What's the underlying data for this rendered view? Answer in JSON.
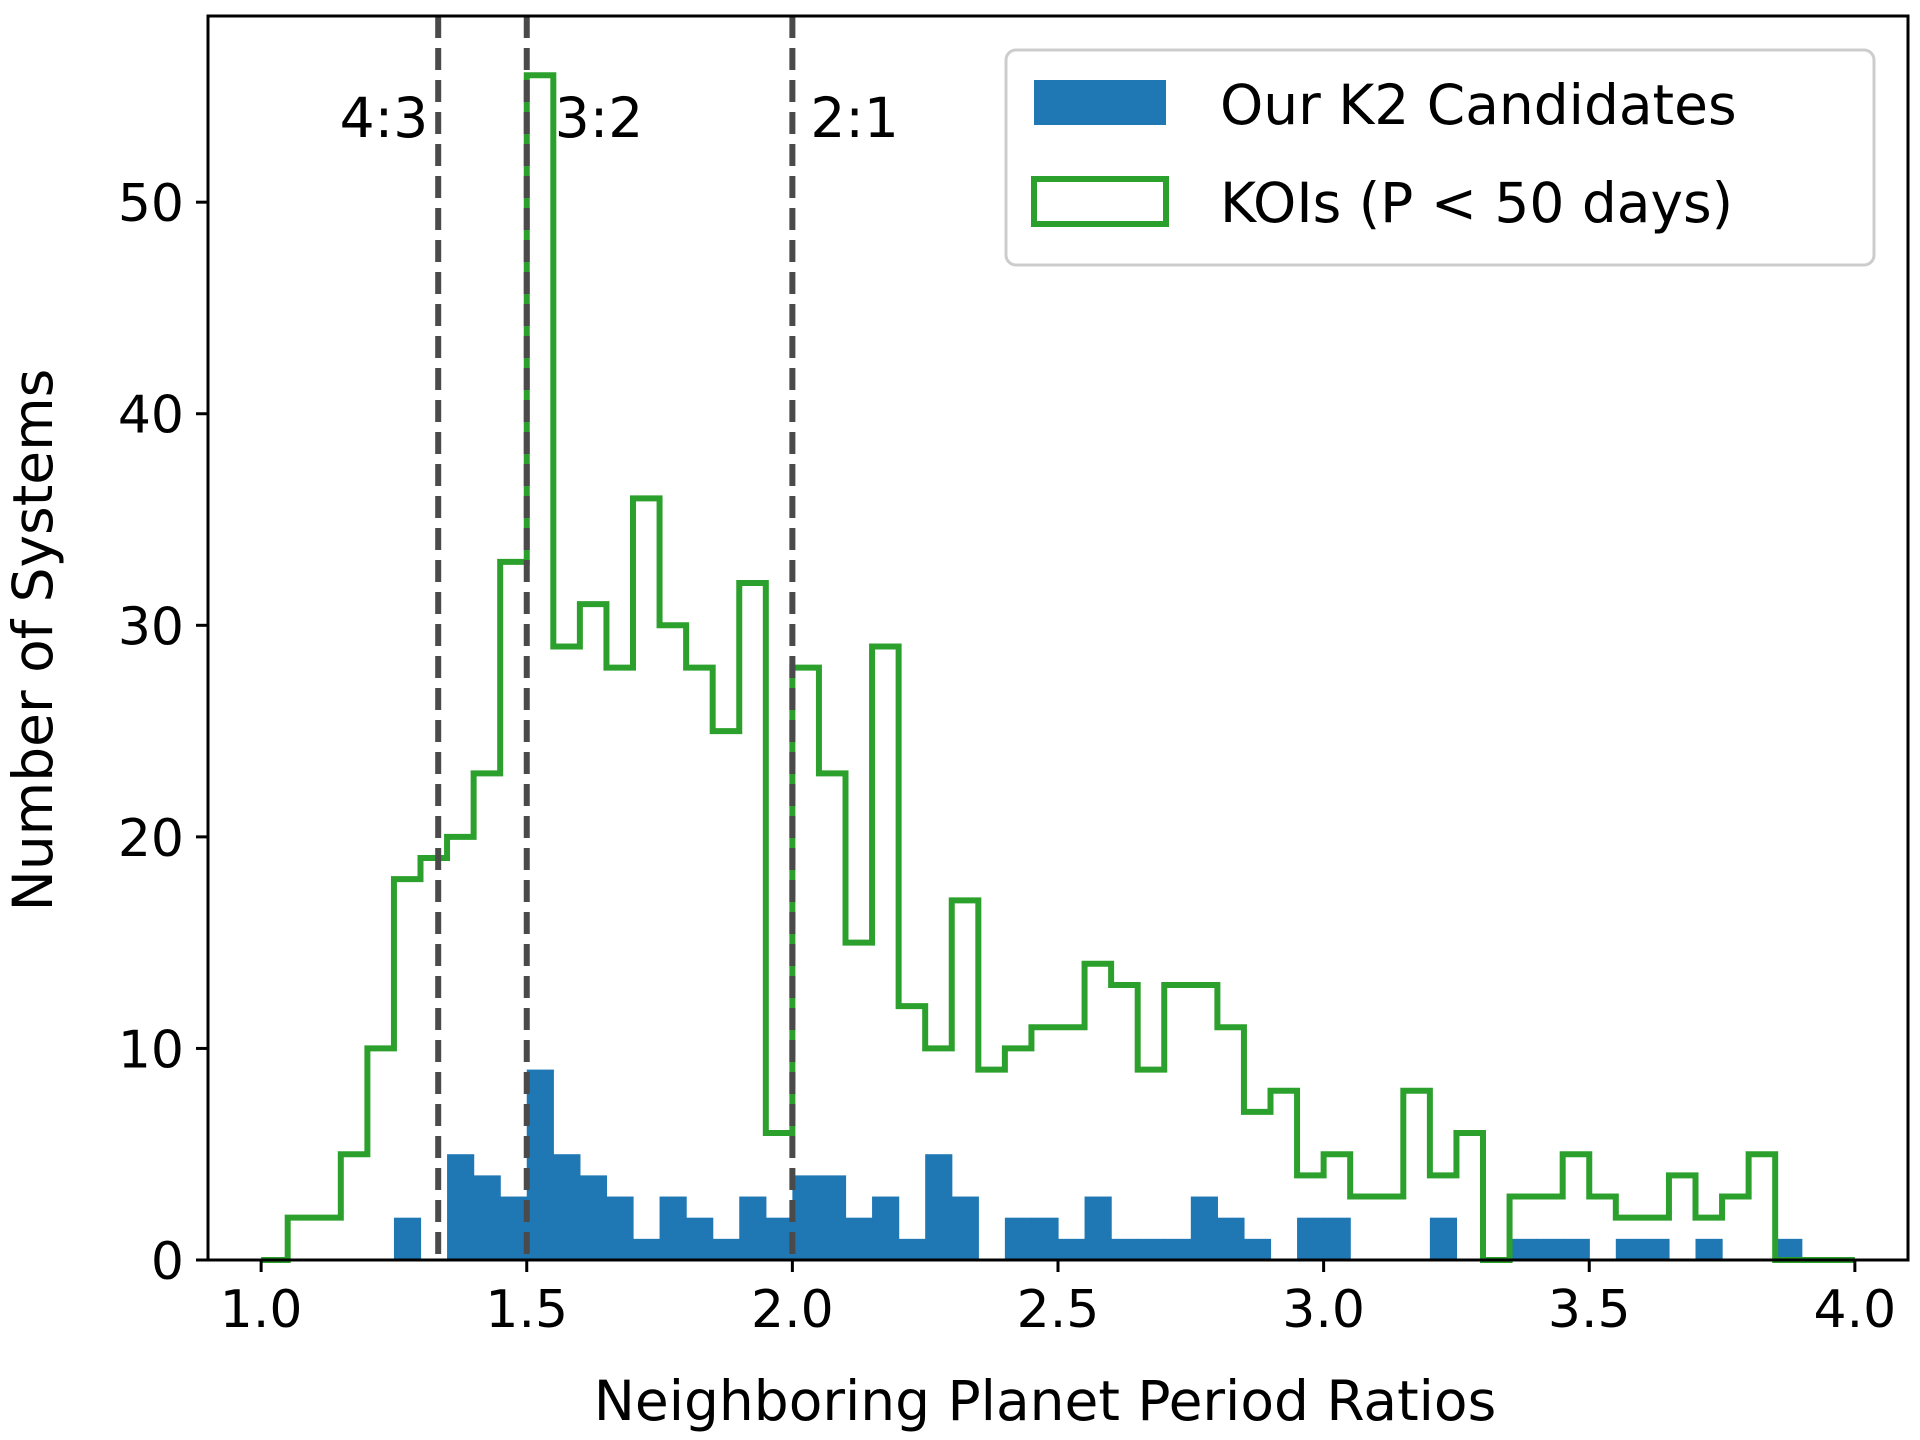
{
  "chart_data": {
    "type": "histogram",
    "title": "",
    "xlabel": "Neighboring Planet Period Ratios",
    "ylabel": "Number of Systems",
    "xlim": [
      0.9,
      4.1
    ],
    "ylim": [
      0,
      58.8
    ],
    "xticks": [
      1.0,
      1.5,
      2.0,
      2.5,
      3.0,
      3.5,
      4.0
    ],
    "xtick_labels": [
      "1.0",
      "1.5",
      "2.0",
      "2.5",
      "3.0",
      "3.5",
      "4.0"
    ],
    "yticks": [
      0,
      10,
      20,
      30,
      40,
      50
    ],
    "ytick_labels": [
      "0",
      "10",
      "20",
      "30",
      "40",
      "50"
    ],
    "grid": false,
    "legend_position": "top-right",
    "bin_edges": [
      1.0,
      1.05,
      1.1,
      1.15,
      1.2,
      1.25,
      1.3,
      1.35,
      1.4,
      1.45,
      1.5,
      1.55,
      1.6,
      1.65,
      1.7,
      1.75,
      1.8,
      1.85,
      1.9,
      1.95,
      2.0,
      2.05,
      2.1,
      2.15,
      2.2,
      2.25,
      2.3,
      2.35,
      2.4,
      2.45,
      2.5,
      2.55,
      2.6,
      2.65,
      2.7,
      2.75,
      2.8,
      2.85,
      2.9,
      2.95,
      3.0,
      3.05,
      3.1,
      3.15,
      3.2,
      3.25,
      3.3,
      3.35,
      3.4,
      3.45,
      3.5,
      3.55,
      3.6,
      3.65,
      3.7,
      3.75,
      3.8,
      3.85,
      3.9,
      3.95
    ],
    "series": [
      {
        "name": "Our K2 Candidates",
        "style": "filled",
        "color": "#1f77b4",
        "values": [
          0,
          0,
          0,
          0,
          0,
          2,
          0,
          5,
          4,
          3,
          9,
          5,
          4,
          3,
          1,
          3,
          2,
          1,
          3,
          2,
          4,
          4,
          2,
          3,
          1,
          5,
          3,
          0,
          2,
          2,
          1,
          3,
          1,
          1,
          1,
          3,
          2,
          1,
          0,
          2,
          2,
          0,
          0,
          0,
          2,
          0,
          0,
          1,
          1,
          1,
          0,
          1,
          1,
          0,
          1,
          0,
          0,
          1,
          0
        ]
      },
      {
        "name": "KOIs (P < 50 days)",
        "style": "step",
        "color": "#2ca02c",
        "values": [
          0,
          2,
          2,
          5,
          10,
          18,
          19,
          20,
          23,
          33,
          56,
          29,
          31,
          28,
          36,
          30,
          28,
          25,
          32,
          6,
          28,
          23,
          15,
          29,
          12,
          10,
          17,
          9,
          10,
          11,
          11,
          14,
          13,
          9,
          13,
          13,
          11,
          7,
          8,
          4,
          5,
          3,
          3,
          8,
          4,
          6,
          0,
          3,
          3,
          5,
          3,
          2,
          2,
          4,
          2,
          3,
          5,
          0,
          0
        ]
      }
    ],
    "annotations": [
      {
        "text": "4:3",
        "x": 1.3333
      },
      {
        "text": "3:2",
        "x": 1.5
      },
      {
        "text": "2:1",
        "x": 2.0
      }
    ],
    "reference_line_color": "#4a4a4a"
  }
}
